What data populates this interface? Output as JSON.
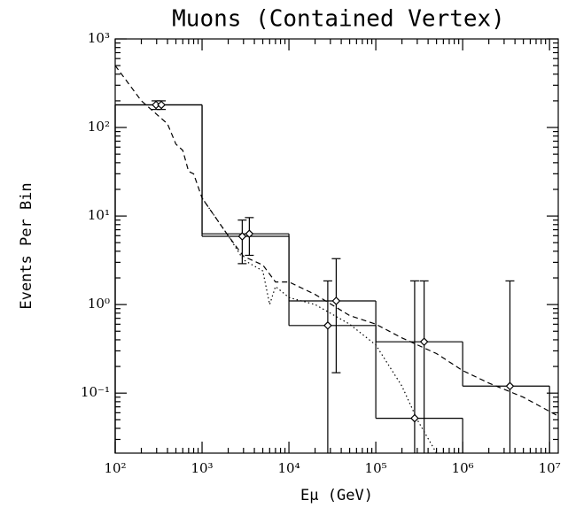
{
  "chart_data": {
    "type": "histogram",
    "title": "Muons (Contained Vertex)",
    "x_label": "Eμ (GeV)",
    "y_label": "Events Per Bin",
    "log_x": true,
    "log_y": true,
    "color": "#000000",
    "xlim": [
      100,
      12600000
    ],
    "ylim": [
      0.021,
      1000
    ],
    "xticks": [
      {
        "value": 100,
        "label": "10²"
      },
      {
        "value": 1000,
        "label": "10³"
      },
      {
        "value": 10000,
        "label": "10⁴"
      },
      {
        "value": 100000,
        "label": "10⁵"
      },
      {
        "value": 1000000,
        "label": "10⁶"
      },
      {
        "value": 10000000,
        "label": "10⁷"
      }
    ],
    "yticks": [
      {
        "value": 0.1,
        "label": "10⁻¹"
      },
      {
        "value": 1,
        "label": "10⁰"
      },
      {
        "value": 10,
        "label": "10¹"
      },
      {
        "value": 100,
        "label": "10²"
      },
      {
        "value": 1000,
        "label": "10³"
      }
    ],
    "histograms": [
      {
        "bins": [
          100,
          1000,
          10000,
          100000,
          1000000,
          10000000
        ],
        "values": [
          180,
          6.3,
          1.1,
          0.38,
          0.12
        ]
      },
      {
        "bins": [
          100,
          1000,
          10000,
          100000,
          1000000
        ],
        "values": [
          180,
          5.9,
          0.58,
          0.052
        ]
      }
    ],
    "curves": [
      {
        "style": "dashed",
        "x": [
          100,
          200,
          400,
          500,
          600,
          700,
          800,
          1000,
          2000,
          3000,
          5000,
          7000,
          10000,
          20000,
          50000,
          100000,
          200000,
          500000,
          1000000,
          2000000,
          5000000,
          12600000
        ],
        "values": [
          500,
          200,
          110,
          65,
          55,
          32,
          30,
          16,
          6,
          3.5,
          2.8,
          1.8,
          1.8,
          1.3,
          0.75,
          0.6,
          0.42,
          0.28,
          0.18,
          0.13,
          0.09,
          0.055
        ]
      },
      {
        "style": "dotted",
        "x": [
          1000,
          2000,
          3000,
          5000,
          6000,
          7000,
          10000,
          20000,
          50000,
          100000,
          200000,
          300000,
          500000
        ],
        "values": [
          16,
          6,
          3.2,
          2.4,
          1.0,
          1.6,
          1.2,
          1.0,
          0.6,
          0.35,
          0.12,
          0.05,
          0.02
        ]
      }
    ],
    "points": {
      "x": [
        295,
        340,
        2900,
        3500,
        28000,
        35000,
        280000,
        360000,
        3500000
      ],
      "values": [
        180,
        180,
        5.9,
        6.3,
        0.58,
        1.1,
        0.052,
        0.38,
        0.12
      ],
      "err_low": [
        20,
        20,
        3.0,
        2.7,
        0.58,
        0.93,
        0.052,
        0.38,
        0.12
      ],
      "err_high": [
        20,
        20,
        3.1,
        3.3,
        1.27,
        2.2,
        1.8,
        1.47,
        1.73
      ]
    }
  }
}
